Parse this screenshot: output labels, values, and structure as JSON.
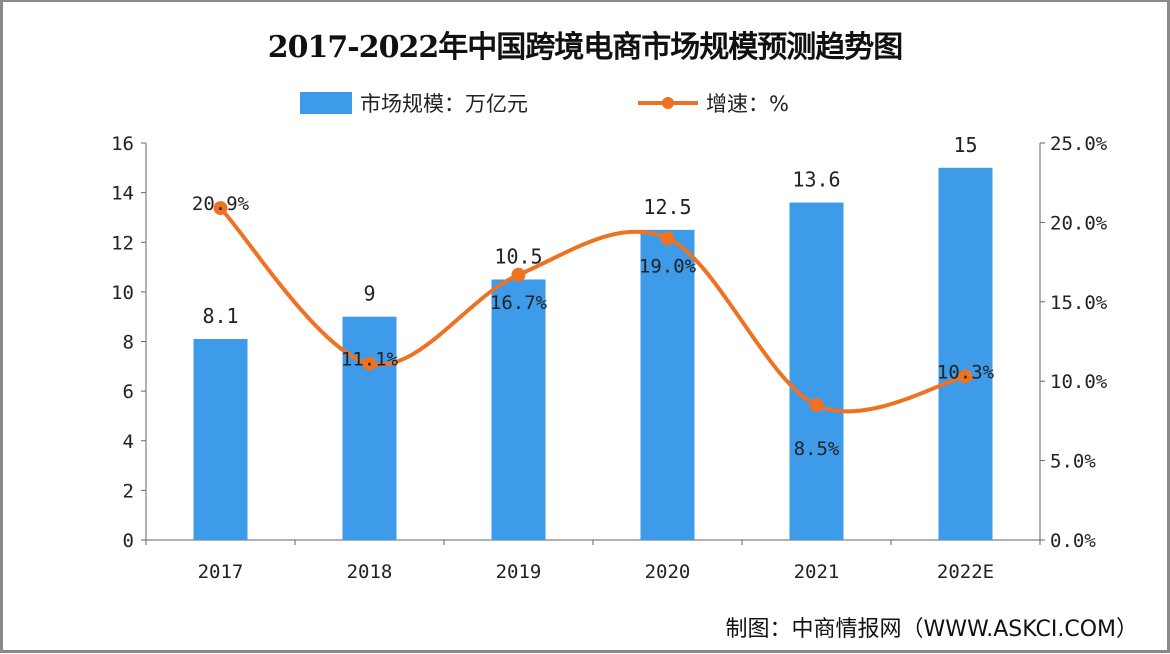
{
  "chart_data": {
    "type": "bar+line",
    "title": "2017-2022年中国跨境电商市场规模预测趋势图",
    "categories": [
      "2017",
      "2018",
      "2019",
      "2020",
      "2021",
      "2022E"
    ],
    "series": [
      {
        "name": "市场规模：万亿元",
        "type": "bar",
        "axis": "left",
        "values": [
          8.1,
          9,
          10.5,
          12.5,
          13.6,
          15
        ],
        "labels": [
          "8.1",
          "9",
          "10.5",
          "12.5",
          "13.6",
          "15"
        ],
        "color": "#3d9be9"
      },
      {
        "name": "增速：%",
        "type": "line",
        "axis": "right",
        "values": [
          20.9,
          11.1,
          16.7,
          19.0,
          8.5,
          10.3
        ],
        "labels": [
          "20.9%",
          "11.1%",
          "16.7%",
          "19.0%",
          "8.5%",
          "10.3%"
        ],
        "color": "#ef7223"
      }
    ],
    "ylim": [
      0,
      16
    ],
    "yticks": [
      "0",
      "2",
      "4",
      "6",
      "8",
      "10",
      "12",
      "14",
      "16"
    ],
    "y2lim": [
      0,
      25
    ],
    "y2ticks": [
      "0.0%",
      "5.0%",
      "10.0%",
      "15.0%",
      "20.0%",
      "25.0%"
    ],
    "legend": "top-center",
    "grid": false
  },
  "source": "制图：中商情报网（WWW.ASKCI.COM）"
}
